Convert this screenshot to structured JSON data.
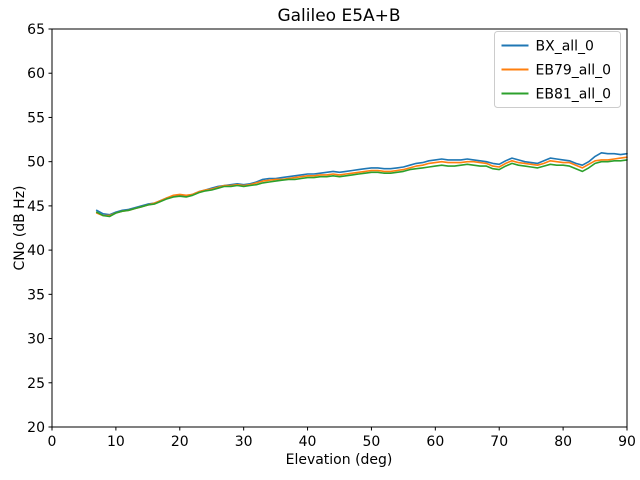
{
  "chart_data": {
    "type": "line",
    "title": "Galileo E5A+B",
    "xlabel": "Elevation (deg)",
    "ylabel": "CNo (dB Hz)",
    "xlim": [
      0,
      90
    ],
    "ylim": [
      20,
      65
    ],
    "xticks": [
      0,
      10,
      20,
      30,
      40,
      50,
      60,
      70,
      80,
      90
    ],
    "yticks": [
      20,
      25,
      30,
      35,
      40,
      45,
      50,
      55,
      60,
      65
    ],
    "grid": false,
    "legend_position": "upper right",
    "colors": {
      "axis": "#000000",
      "legend_border": "#cccccc",
      "background": "#ffffff"
    },
    "x": [
      7,
      8,
      9,
      10,
      11,
      12,
      13,
      14,
      15,
      16,
      17,
      18,
      19,
      20,
      21,
      22,
      23,
      24,
      25,
      26,
      27,
      28,
      29,
      30,
      31,
      32,
      33,
      34,
      35,
      36,
      37,
      38,
      39,
      40,
      41,
      42,
      43,
      44,
      45,
      46,
      47,
      48,
      49,
      50,
      51,
      52,
      53,
      54,
      55,
      56,
      57,
      58,
      59,
      60,
      61,
      62,
      63,
      64,
      65,
      66,
      67,
      68,
      69,
      70,
      71,
      72,
      73,
      74,
      75,
      76,
      77,
      78,
      79,
      80,
      81,
      82,
      83,
      84,
      85,
      86,
      87,
      88,
      89,
      90
    ],
    "series": [
      {
        "name": "BX_all_0",
        "color": "#1f77b4",
        "values": [
          44.5,
          44.1,
          44.0,
          44.3,
          44.5,
          44.6,
          44.8,
          45.0,
          45.2,
          45.3,
          45.6,
          45.9,
          46.1,
          46.2,
          46.1,
          46.3,
          46.6,
          46.8,
          47.0,
          47.2,
          47.3,
          47.4,
          47.5,
          47.4,
          47.5,
          47.7,
          48.0,
          48.1,
          48.1,
          48.2,
          48.3,
          48.4,
          48.5,
          48.6,
          48.6,
          48.7,
          48.8,
          48.9,
          48.8,
          48.9,
          49.0,
          49.1,
          49.2,
          49.3,
          49.3,
          49.2,
          49.2,
          49.3,
          49.4,
          49.6,
          49.8,
          49.9,
          50.1,
          50.2,
          50.3,
          50.2,
          50.2,
          50.2,
          50.3,
          50.2,
          50.1,
          50.0,
          49.8,
          49.7,
          50.1,
          50.4,
          50.2,
          50.0,
          49.9,
          49.8,
          50.1,
          50.4,
          50.3,
          50.2,
          50.1,
          49.8,
          49.6,
          50.0,
          50.6,
          51.0,
          50.9,
          50.9,
          50.8,
          50.9
        ]
      },
      {
        "name": "EB79_all_0",
        "color": "#ff7f0e",
        "values": [
          44.2,
          43.9,
          43.9,
          44.2,
          44.4,
          44.5,
          44.7,
          44.9,
          45.1,
          45.3,
          45.6,
          45.9,
          46.2,
          46.3,
          46.2,
          46.3,
          46.6,
          46.8,
          46.9,
          47.1,
          47.3,
          47.3,
          47.4,
          47.3,
          47.4,
          47.6,
          47.8,
          47.9,
          48.0,
          48.0,
          48.1,
          48.2,
          48.3,
          48.4,
          48.4,
          48.5,
          48.5,
          48.6,
          48.5,
          48.6,
          48.7,
          48.8,
          48.9,
          49.0,
          49.0,
          48.9,
          48.9,
          49.0,
          49.1,
          49.3,
          49.5,
          49.6,
          49.8,
          49.9,
          50.0,
          49.9,
          49.9,
          49.9,
          50.0,
          50.0,
          49.9,
          49.8,
          49.5,
          49.4,
          49.8,
          50.1,
          49.9,
          49.8,
          49.7,
          49.6,
          49.8,
          50.1,
          50.0,
          49.9,
          49.9,
          49.6,
          49.3,
          49.7,
          50.1,
          50.2,
          50.2,
          50.3,
          50.4,
          50.5
        ]
      },
      {
        "name": "EB81_all_0",
        "color": "#2ca02c",
        "values": [
          44.3,
          43.9,
          43.8,
          44.2,
          44.4,
          44.5,
          44.7,
          44.9,
          45.1,
          45.2,
          45.5,
          45.8,
          46.0,
          46.1,
          46.0,
          46.2,
          46.5,
          46.7,
          46.8,
          47.0,
          47.2,
          47.2,
          47.3,
          47.2,
          47.3,
          47.4,
          47.6,
          47.7,
          47.8,
          47.9,
          48.0,
          48.0,
          48.1,
          48.2,
          48.2,
          48.3,
          48.3,
          48.4,
          48.3,
          48.4,
          48.5,
          48.6,
          48.7,
          48.8,
          48.8,
          48.7,
          48.7,
          48.8,
          48.9,
          49.1,
          49.2,
          49.3,
          49.4,
          49.5,
          49.6,
          49.5,
          49.5,
          49.6,
          49.7,
          49.6,
          49.5,
          49.5,
          49.2,
          49.1,
          49.5,
          49.8,
          49.6,
          49.5,
          49.4,
          49.3,
          49.5,
          49.7,
          49.6,
          49.6,
          49.5,
          49.2,
          48.9,
          49.3,
          49.8,
          50.0,
          50.0,
          50.1,
          50.1,
          50.2
        ]
      }
    ]
  }
}
